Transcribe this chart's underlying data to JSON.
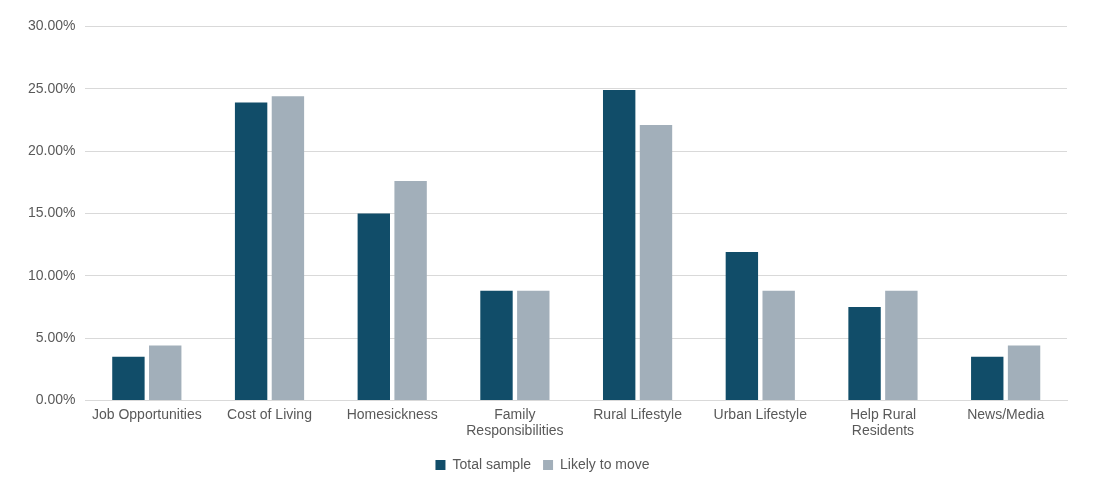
{
  "chart_data": {
    "type": "bar",
    "categories": [
      "Job Opportunities",
      "Cost of Living",
      "Homesickness",
      "Family Responsibilities",
      "Rural Lifestyle",
      "Urban Lifestyle",
      "Help Rural Residents",
      "News/Media"
    ],
    "series": [
      {
        "name": "Total sample",
        "color": "#114d69",
        "values": [
          3.5,
          23.9,
          15.0,
          8.8,
          24.9,
          11.9,
          7.5,
          3.5
        ]
      },
      {
        "name": "Likely to move",
        "color": "#a2afba",
        "values": [
          4.4,
          24.4,
          17.6,
          8.8,
          22.1,
          8.8,
          8.8,
          4.4
        ]
      }
    ],
    "ylim": [
      0,
      30
    ],
    "yticks": [
      {
        "value": 0,
        "label": "0.00%"
      },
      {
        "value": 5,
        "label": "5.00%"
      },
      {
        "value": 10,
        "label": "10.00%"
      },
      {
        "value": 15,
        "label": "15.00%"
      },
      {
        "value": 20,
        "label": "20.00%"
      },
      {
        "value": 25,
        "label": "25.00%"
      },
      {
        "value": 30,
        "label": "30.00%"
      }
    ],
    "grid": "y",
    "legend": "bottom"
  }
}
